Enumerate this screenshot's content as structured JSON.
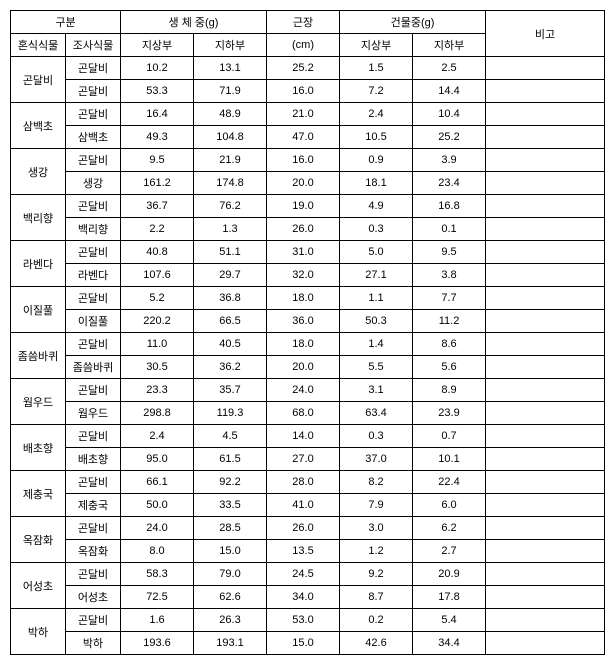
{
  "headers": {
    "gubun": "구분",
    "fresh": "생 체 중(g)",
    "rootlen": "근장",
    "dry": "건물중(g)",
    "remark": "비고",
    "mixplant": "혼식식물",
    "surveyplant": "조사식물",
    "above1": "지상부",
    "below1": "지하부",
    "cm": "(cm)",
    "above2": "지상부",
    "below2": "지하부"
  },
  "groups": [
    {
      "name": "곤달비",
      "rows": [
        {
          "plant": "곤달비",
          "v1": "10.2",
          "v2": "13.1",
          "v3": "25.2",
          "v4": "1.5",
          "v5": "2.5"
        },
        {
          "plant": "곤달비",
          "v1": "53.3",
          "v2": "71.9",
          "v3": "16.0",
          "v4": "7.2",
          "v5": "14.4"
        }
      ]
    },
    {
      "name": "삼백초",
      "rows": [
        {
          "plant": "곤달비",
          "v1": "16.4",
          "v2": "48.9",
          "v3": "21.0",
          "v4": "2.4",
          "v5": "10.4"
        },
        {
          "plant": "삼백초",
          "v1": "49.3",
          "v2": "104.8",
          "v3": "47.0",
          "v4": "10.5",
          "v5": "25.2"
        }
      ]
    },
    {
      "name": "생강",
      "rows": [
        {
          "plant": "곤달비",
          "v1": "9.5",
          "v2": "21.9",
          "v3": "16.0",
          "v4": "0.9",
          "v5": "3.9"
        },
        {
          "plant": "생강",
          "v1": "161.2",
          "v2": "174.8",
          "v3": "20.0",
          "v4": "18.1",
          "v5": "23.4"
        }
      ]
    },
    {
      "name": "백리향",
      "rows": [
        {
          "plant": "곤달비",
          "v1": "36.7",
          "v2": "76.2",
          "v3": "19.0",
          "v4": "4.9",
          "v5": "16.8"
        },
        {
          "plant": "백리향",
          "v1": "2.2",
          "v2": "1.3",
          "v3": "26.0",
          "v4": "0.3",
          "v5": "0.1"
        }
      ]
    },
    {
      "name": "라벤다",
      "rows": [
        {
          "plant": "곤달비",
          "v1": "40.8",
          "v2": "51.1",
          "v3": "31.0",
          "v4": "5.0",
          "v5": "9.5"
        },
        {
          "plant": "라벤다",
          "v1": "107.6",
          "v2": "29.7",
          "v3": "32.0",
          "v4": "27.1",
          "v5": "3.8"
        }
      ]
    },
    {
      "name": "이질풀",
      "rows": [
        {
          "plant": "곤달비",
          "v1": "5.2",
          "v2": "36.8",
          "v3": "18.0",
          "v4": "1.1",
          "v5": "7.7"
        },
        {
          "plant": "이질풀",
          "v1": "220.2",
          "v2": "66.5",
          "v3": "36.0",
          "v4": "50.3",
          "v5": "11.2"
        }
      ]
    },
    {
      "name": "좀씀바퀴",
      "rows": [
        {
          "plant": "곤달비",
          "v1": "11.0",
          "v2": "40.5",
          "v3": "18.0",
          "v4": "1.4",
          "v5": "8.6"
        },
        {
          "plant": "좀씀바퀴",
          "v1": "30.5",
          "v2": "36.2",
          "v3": "20.0",
          "v4": "5.5",
          "v5": "5.6"
        }
      ]
    },
    {
      "name": "웜우드",
      "rows": [
        {
          "plant": "곤달비",
          "v1": "23.3",
          "v2": "35.7",
          "v3": "24.0",
          "v4": "3.1",
          "v5": "8.9"
        },
        {
          "plant": "웜우드",
          "v1": "298.8",
          "v2": "119.3",
          "v3": "68.0",
          "v4": "63.4",
          "v5": "23.9"
        }
      ]
    },
    {
      "name": "배초향",
      "rows": [
        {
          "plant": "곤달비",
          "v1": "2.4",
          "v2": "4.5",
          "v3": "14.0",
          "v4": "0.3",
          "v5": "0.7"
        },
        {
          "plant": "배초향",
          "v1": "95.0",
          "v2": "61.5",
          "v3": "27.0",
          "v4": "37.0",
          "v5": "10.1"
        }
      ]
    },
    {
      "name": "제충국",
      "rows": [
        {
          "plant": "곤달비",
          "v1": "66.1",
          "v2": "92.2",
          "v3": "28.0",
          "v4": "8.2",
          "v5": "22.4"
        },
        {
          "plant": "제충국",
          "v1": "50.0",
          "v2": "33.5",
          "v3": "41.0",
          "v4": "7.9",
          "v5": "6.0"
        }
      ]
    },
    {
      "name": "옥잠화",
      "rows": [
        {
          "plant": "곤달비",
          "v1": "24.0",
          "v2": "28.5",
          "v3": "26.0",
          "v4": "3.0",
          "v5": "6.2"
        },
        {
          "plant": "옥잠화",
          "v1": "8.0",
          "v2": "15.0",
          "v3": "13.5",
          "v4": "1.2",
          "v5": "2.7"
        }
      ]
    },
    {
      "name": "어성초",
      "rows": [
        {
          "plant": "곤달비",
          "v1": "58.3",
          "v2": "79.0",
          "v3": "24.5",
          "v4": "9.2",
          "v5": "20.9"
        },
        {
          "plant": "어성초",
          "v1": "72.5",
          "v2": "62.6",
          "v3": "34.0",
          "v4": "8.7",
          "v5": "17.8"
        }
      ]
    },
    {
      "name": "박하",
      "rows": [
        {
          "plant": "곤달비",
          "v1": "1.6",
          "v2": "26.3",
          "v3": "53.0",
          "v4": "0.2",
          "v5": "5.4"
        },
        {
          "plant": "박하",
          "v1": "193.6",
          "v2": "193.1",
          "v3": "15.0",
          "v4": "42.6",
          "v5": "34.4"
        }
      ]
    }
  ]
}
